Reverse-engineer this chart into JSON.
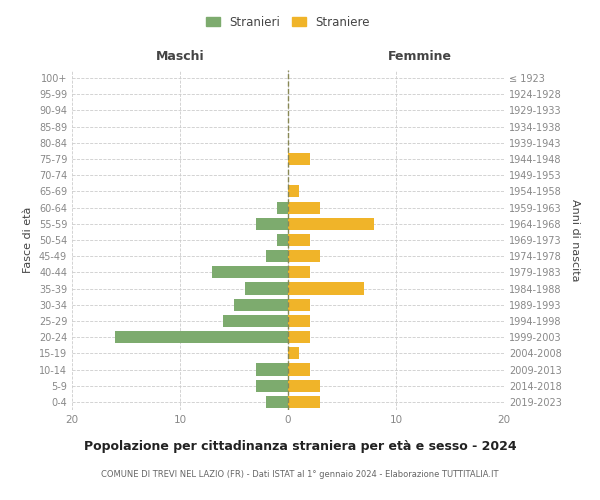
{
  "age_groups": [
    "0-4",
    "5-9",
    "10-14",
    "15-19",
    "20-24",
    "25-29",
    "30-34",
    "35-39",
    "40-44",
    "45-49",
    "50-54",
    "55-59",
    "60-64",
    "65-69",
    "70-74",
    "75-79",
    "80-84",
    "85-89",
    "90-94",
    "95-99",
    "100+"
  ],
  "birth_years": [
    "2019-2023",
    "2014-2018",
    "2009-2013",
    "2004-2008",
    "1999-2003",
    "1994-1998",
    "1989-1993",
    "1984-1988",
    "1979-1983",
    "1974-1978",
    "1969-1973",
    "1964-1968",
    "1959-1963",
    "1954-1958",
    "1949-1953",
    "1944-1948",
    "1939-1943",
    "1934-1938",
    "1929-1933",
    "1924-1928",
    "≤ 1923"
  ],
  "males": [
    2,
    3,
    3,
    0,
    16,
    6,
    5,
    4,
    7,
    2,
    1,
    3,
    1,
    0,
    0,
    0,
    0,
    0,
    0,
    0,
    0
  ],
  "females": [
    3,
    3,
    2,
    1,
    2,
    2,
    2,
    7,
    2,
    3,
    2,
    8,
    3,
    1,
    0,
    2,
    0,
    0,
    0,
    0,
    0
  ],
  "male_color": "#7dab6e",
  "female_color": "#f0b429",
  "background_color": "#ffffff",
  "grid_color": "#cccccc",
  "dashed_line_color": "#888855",
  "title": "Popolazione per cittadinanza straniera per età e sesso - 2024",
  "subtitle": "COMUNE DI TREVI NEL LAZIO (FR) - Dati ISTAT al 1° gennaio 2024 - Elaborazione TUTTITALIA.IT",
  "xlabel_left": "Maschi",
  "xlabel_right": "Femmine",
  "ylabel_left": "Fasce di età",
  "ylabel_right": "Anni di nascita",
  "legend_male": "Stranieri",
  "legend_female": "Straniere",
  "xlim": 20,
  "tick_color": "#888888",
  "text_color": "#444444",
  "title_color": "#222222",
  "subtitle_color": "#666666"
}
